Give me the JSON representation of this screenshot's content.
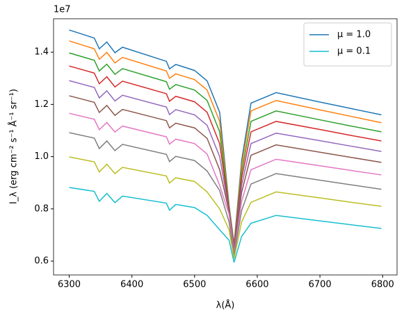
{
  "chart_data": {
    "type": "line",
    "offset_label": "1e7",
    "xlabel": "λ(Å)",
    "ylabel": "I_λ (erg cm⁻² s⁻¹ Å⁻¹ sr⁻¹)",
    "x": [
      6300,
      6340,
      6348,
      6360,
      6373,
      6385,
      6455,
      6460,
      6470,
      6500,
      6520,
      6540,
      6555,
      6563,
      6575,
      6590,
      6630,
      6700,
      6750,
      6798
    ],
    "series": [
      {
        "name": "μ = 1.0",
        "color": "#1f77b4",
        "values": [
          1.485,
          1.454,
          1.413,
          1.439,
          1.398,
          1.419,
          1.365,
          1.336,
          1.353,
          1.33,
          1.29,
          1.17,
          0.815,
          0.665,
          0.984,
          1.205,
          1.245,
          1.209,
          1.184,
          1.16
        ]
      },
      {
        "color": "#ff7f0e",
        "values": [
          1.443,
          1.413,
          1.373,
          1.399,
          1.359,
          1.38,
          1.328,
          1.3,
          1.317,
          1.295,
          1.255,
          1.135,
          0.81,
          0.66,
          0.965,
          1.175,
          1.215,
          1.179,
          1.154,
          1.13
        ]
      },
      {
        "color": "#2ca02c",
        "values": [
          1.397,
          1.369,
          1.328,
          1.354,
          1.315,
          1.337,
          1.287,
          1.258,
          1.276,
          1.255,
          1.215,
          1.095,
          0.805,
          0.655,
          0.941,
          1.135,
          1.175,
          1.141,
          1.117,
          1.095
        ]
      },
      {
        "color": "#d62728",
        "values": [
          1.347,
          1.32,
          1.279,
          1.306,
          1.267,
          1.289,
          1.241,
          1.212,
          1.231,
          1.21,
          1.17,
          1.05,
          0.8,
          0.65,
          0.917,
          1.095,
          1.135,
          1.104,
          1.081,
          1.06
        ]
      },
      {
        "color": "#9467bd",
        "values": [
          1.291,
          1.265,
          1.225,
          1.252,
          1.213,
          1.235,
          1.19,
          1.161,
          1.18,
          1.16,
          1.12,
          1.0,
          0.795,
          0.645,
          0.89,
          1.05,
          1.09,
          1.061,
          1.04,
          1.02
        ]
      },
      {
        "color": "#8c564b",
        "values": [
          1.233,
          1.208,
          1.169,
          1.196,
          1.158,
          1.181,
          1.138,
          1.11,
          1.128,
          1.11,
          1.07,
          0.95,
          0.79,
          0.64,
          0.863,
          1.005,
          1.045,
          1.017,
          0.997,
          0.978
        ]
      },
      {
        "color": "#e377c2",
        "values": [
          1.166,
          1.143,
          1.103,
          1.131,
          1.094,
          1.117,
          1.076,
          1.048,
          1.067,
          1.05,
          1.01,
          0.89,
          0.78,
          0.63,
          0.828,
          0.95,
          0.99,
          0.965,
          0.947,
          0.93
        ]
      },
      {
        "color": "#7f7f7f",
        "values": [
          1.092,
          1.071,
          1.031,
          1.06,
          1.023,
          1.047,
          1.009,
          0.981,
          1.001,
          0.985,
          0.945,
          0.87,
          0.75,
          0.62,
          0.793,
          0.895,
          0.935,
          0.91,
          0.892,
          0.875
        ]
      },
      {
        "color": "#bcbd22",
        "values": [
          0.999,
          0.98,
          0.941,
          0.971,
          0.935,
          0.959,
          0.926,
          0.899,
          0.919,
          0.905,
          0.865,
          0.8,
          0.72,
          0.61,
          0.75,
          0.825,
          0.865,
          0.842,
          0.825,
          0.81
        ]
      },
      {
        "name": "μ = 0.1",
        "color": "#17becf",
        "values": [
          0.882,
          0.867,
          0.829,
          0.859,
          0.824,
          0.849,
          0.822,
          0.795,
          0.817,
          0.805,
          0.775,
          0.72,
          0.68,
          0.595,
          0.694,
          0.745,
          0.775,
          0.754,
          0.739,
          0.725
        ]
      }
    ],
    "xlim": [
      6275,
      6823
    ],
    "xticks": [
      6300,
      6400,
      6500,
      6600,
      6700,
      6800
    ],
    "ylim": [
      0.547,
      1.528
    ],
    "yticks": [
      0.6,
      0.8,
      {
        "value": 1,
        "label": "1.0"
      },
      1.2,
      1.4
    ],
    "grid": false,
    "legend": "upper right"
  }
}
